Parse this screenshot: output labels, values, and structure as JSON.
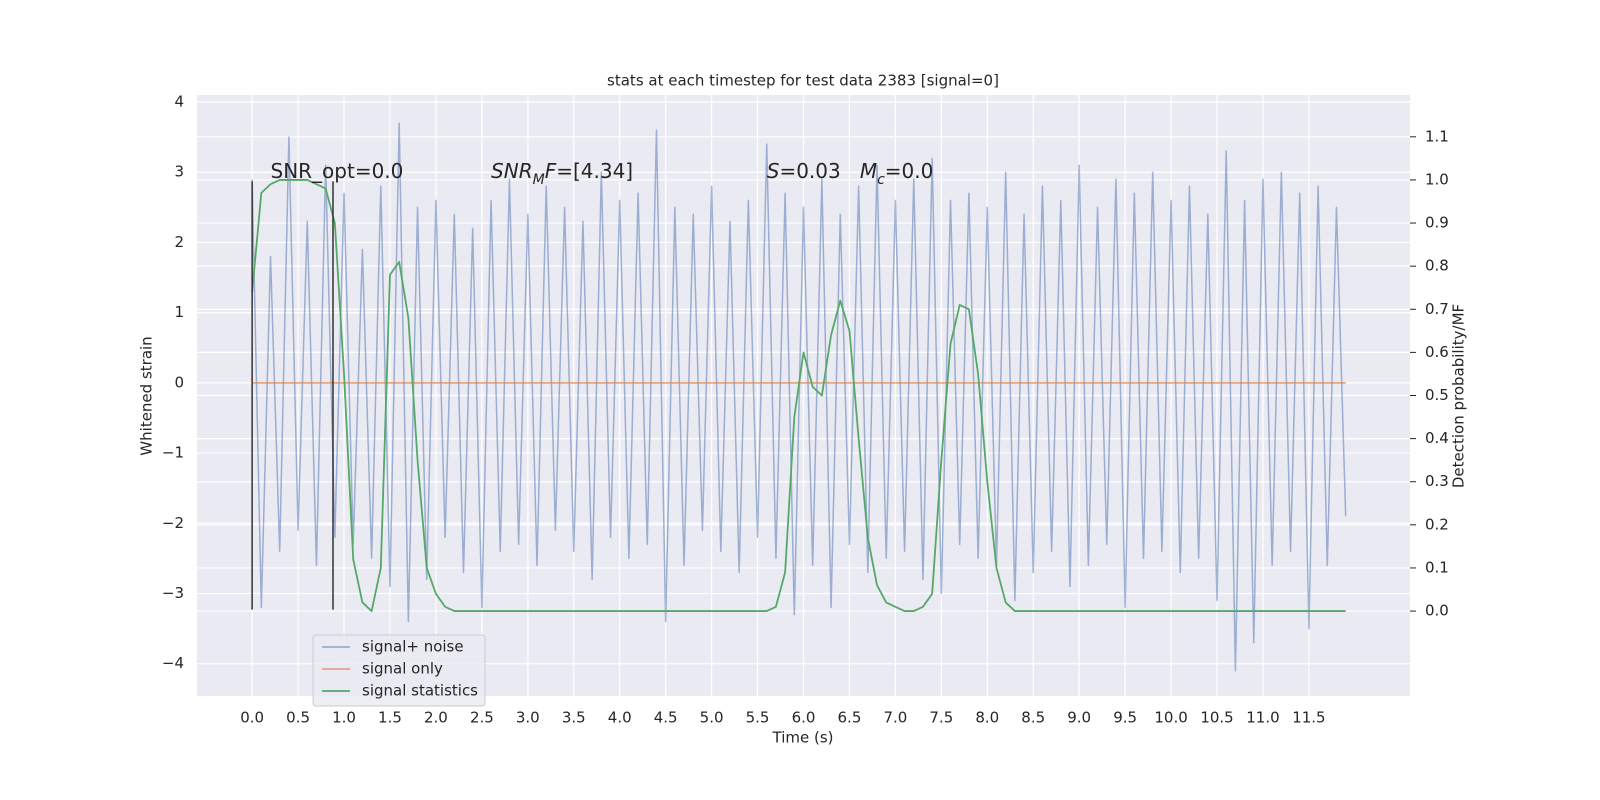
{
  "chart_data": {
    "type": "line",
    "title": "stats at each timestep for test data 2383 [signal=0]",
    "xlabel": "Time (s)",
    "ylabel": "Whitened strain",
    "y2label": "Detection probability/MF",
    "xlim": [
      -0.6,
      12.6
    ],
    "ylim": [
      -4.46,
      4.1
    ],
    "y2lim": [
      -0.197,
      1.197
    ],
    "xticks": [
      {
        "value": 0,
        "label": "0.0"
      },
      0.5,
      {
        "value": 1,
        "label": "1.0"
      },
      1.5,
      {
        "value": 2,
        "label": "2.0"
      },
      2.5,
      {
        "value": 3,
        "label": "3.0"
      },
      3.5,
      {
        "value": 4,
        "label": "4.0"
      },
      4.5,
      {
        "value": 5,
        "label": "5.0"
      },
      5.5,
      {
        "value": 6,
        "label": "6.0"
      },
      6.5,
      {
        "value": 7,
        "label": "7.0"
      },
      7.5,
      {
        "value": 8,
        "label": "8.0"
      },
      8.5,
      {
        "value": 9,
        "label": "9.0"
      },
      9.5,
      {
        "value": 10,
        "label": "10.0"
      },
      10.5,
      {
        "value": 11,
        "label": "11.0"
      },
      11.5
    ],
    "yticks": [
      {
        "value": -4,
        "label": "−4"
      },
      {
        "value": -3,
        "label": "−3"
      },
      {
        "value": -2,
        "label": "−2"
      },
      {
        "value": -1,
        "label": "−1"
      },
      0,
      1,
      2,
      3,
      4
    ],
    "y2ticks": [
      {
        "value": 0,
        "label": "0.0"
      },
      0.1,
      0.2,
      0.3,
      0.4,
      0.5,
      0.6,
      0.7,
      0.8,
      0.9,
      {
        "value": 1,
        "label": "1.0"
      },
      1.1
    ],
    "grid": true,
    "legend": "lower left",
    "x": [
      0,
      0.1,
      0.2,
      0.3,
      0.4,
      0.5,
      0.6,
      0.7,
      0.8,
      0.9,
      1,
      1.1,
      1.2,
      1.3,
      1.4,
      1.5,
      1.6,
      1.7,
      1.8,
      1.9,
      2,
      2.1,
      2.2,
      2.3,
      2.4,
      2.5,
      2.6,
      2.7,
      2.8,
      2.9,
      3,
      3.1,
      3.2,
      3.3,
      3.4,
      3.5,
      3.6,
      3.7,
      3.8,
      3.9,
      4,
      4.1,
      4.2,
      4.3,
      4.4,
      4.5,
      4.6,
      4.7,
      4.8,
      4.9,
      5,
      5.1,
      5.2,
      5.3,
      5.4,
      5.5,
      5.6,
      5.7,
      5.8,
      5.9,
      6,
      6.1,
      6.2,
      6.3,
      6.4,
      6.5,
      6.6,
      6.7,
      6.8,
      6.9,
      7,
      7.1,
      7.2,
      7.3,
      7.4,
      7.5,
      7.6,
      7.7,
      7.8,
      7.9,
      8,
      8.1,
      8.2,
      8.3,
      8.4,
      8.5,
      8.6,
      8.7,
      8.8,
      8.9,
      9,
      9.1,
      9.2,
      9.3,
      9.4,
      9.5,
      9.6,
      9.7,
      9.8,
      9.9,
      10,
      10.1,
      10.2,
      10.3,
      10.4,
      10.5,
      10.6,
      10.7,
      10.8,
      10.9,
      11,
      11.1,
      11.2,
      11.3,
      11.4,
      11.5,
      11.6,
      11.7,
      11.8,
      11.9
    ],
    "series": [
      {
        "name": "signal+ noise",
        "color": "#4c72b0",
        "opacity": 0.5,
        "values": [
          2.9,
          -3.2,
          1.8,
          -2.4,
          3.5,
          -2.1,
          2.3,
          -2.6,
          3.1,
          -2.2,
          2.7,
          -2.3,
          1.9,
          -2.5,
          2.8,
          -2.9,
          3.7,
          -3.4,
          2.5,
          -2.8,
          2.6,
          -2.2,
          2.4,
          -2.7,
          2.2,
          -3.2,
          2.6,
          -2.4,
          2.9,
          -2.3,
          2.4,
          -2.6,
          2.8,
          -2.1,
          2.5,
          -2.4,
          2.3,
          -2.8,
          3.0,
          -2.2,
          2.6,
          -2.5,
          2.7,
          -2.3,
          3.6,
          -3.4,
          2.5,
          -2.6,
          2.4,
          -2.1,
          2.8,
          -2.4,
          2.3,
          -2.7,
          2.6,
          -2.2,
          3.4,
          -2.5,
          2.7,
          -3.3,
          2.5,
          -2.6,
          2.9,
          -3.2,
          2.4,
          -2.3,
          2.8,
          -2.7,
          3.1,
          -2.5,
          2.6,
          -2.4,
          2.9,
          -2.8,
          3.2,
          -3.0,
          2.6,
          -2.3,
          2.7,
          -2.5,
          2.5,
          -2.6,
          3.0,
          -3.1,
          2.4,
          -2.7,
          2.8,
          -2.4,
          2.6,
          -2.9,
          3.1,
          -2.6,
          2.5,
          -2.3,
          2.9,
          -3.2,
          2.7,
          -2.5,
          3.0,
          -2.4,
          2.6,
          -2.7,
          2.8,
          -2.5,
          2.4,
          -3.1,
          3.3,
          -4.1,
          2.6,
          -3.7,
          2.9,
          -2.6,
          3.0,
          -2.4,
          2.7,
          -3.5,
          2.8,
          -2.6,
          2.5,
          -1.9
        ]
      },
      {
        "name": "signal only",
        "color": "#dd8452",
        "opacity": 0.7,
        "values": [
          0,
          0,
          0,
          0,
          0,
          0,
          0,
          0,
          0,
          0,
          0,
          0,
          0,
          0,
          0,
          0,
          0,
          0,
          0,
          0,
          0,
          0,
          0,
          0,
          0,
          0,
          0,
          0,
          0,
          0,
          0,
          0,
          0,
          0,
          0,
          0,
          0,
          0,
          0,
          0,
          0,
          0,
          0,
          0,
          0,
          0,
          0,
          0,
          0,
          0,
          0,
          0,
          0,
          0,
          0,
          0,
          0,
          0,
          0,
          0,
          0,
          0,
          0,
          0,
          0,
          0,
          0,
          0,
          0,
          0,
          0,
          0,
          0,
          0,
          0,
          0,
          0,
          0,
          0,
          0,
          0,
          0,
          0,
          0,
          0,
          0,
          0,
          0,
          0,
          0,
          0,
          0,
          0,
          0,
          0,
          0,
          0,
          0,
          0,
          0,
          0,
          0,
          0,
          0,
          0,
          0,
          0,
          0,
          0,
          0,
          0,
          0,
          0,
          0,
          0,
          0,
          0,
          0,
          0,
          0
        ]
      },
      {
        "name": "signal statistics",
        "color": "#55a868",
        "opacity": 1,
        "axis": "y2",
        "values": [
          0.74,
          0.97,
          0.99,
          1.0,
          1.0,
          1.0,
          1.0,
          0.99,
          0.98,
          0.9,
          0.55,
          0.12,
          0.02,
          0.0,
          0.1,
          0.78,
          0.81,
          0.68,
          0.35,
          0.1,
          0.04,
          0.01,
          0.0,
          0,
          0,
          0,
          0,
          0,
          0,
          0,
          0,
          0,
          0,
          0,
          0,
          0,
          0,
          0,
          0,
          0,
          0,
          0,
          0,
          0,
          0,
          0,
          0,
          0,
          0,
          0,
          0,
          0,
          0,
          0,
          0,
          0,
          0,
          0.01,
          0.09,
          0.45,
          0.6,
          0.52,
          0.5,
          0.64,
          0.72,
          0.65,
          0.4,
          0.17,
          0.06,
          0.02,
          0.01,
          0,
          0,
          0.01,
          0.04,
          0.35,
          0.62,
          0.71,
          0.7,
          0.55,
          0.3,
          0.1,
          0.02,
          0,
          0,
          0,
          0,
          0,
          0,
          0,
          0,
          0,
          0,
          0,
          0,
          0,
          0,
          0,
          0,
          0,
          0,
          0,
          0,
          0,
          0,
          0,
          0,
          0,
          0,
          0,
          0,
          0,
          0,
          0,
          0,
          0,
          0,
          0,
          0,
          0
        ]
      }
    ],
    "vlines": [
      {
        "x": 0,
        "ymin": -3.23,
        "ymax": 2.87,
        "color": "#333333"
      },
      {
        "x": 0.88,
        "ymin": -3.23,
        "ymax": 2.87,
        "color": "#333333"
      }
    ],
    "annotations": [
      {
        "x": 0.2,
        "y": 3.0,
        "parts": [
          {
            "text": "SNR_opt=0.0"
          }
        ]
      },
      {
        "x": 2.6,
        "y": 3.0,
        "parts": [
          {
            "text": "SNR",
            "italic": true
          },
          {
            "text": "M",
            "italic": true,
            "sub": true
          },
          {
            "text": "F",
            "italic": true
          },
          {
            "text": "=[4.34]"
          }
        ]
      },
      {
        "x": 5.6,
        "y": 3.0,
        "parts": [
          {
            "text": "S",
            "italic": true
          },
          {
            "text": "=0.03   "
          },
          {
            "text": "M",
            "italic": true
          },
          {
            "text": "c",
            "italic": true,
            "sub": true
          },
          {
            "text": "=0.0"
          }
        ]
      }
    ]
  }
}
